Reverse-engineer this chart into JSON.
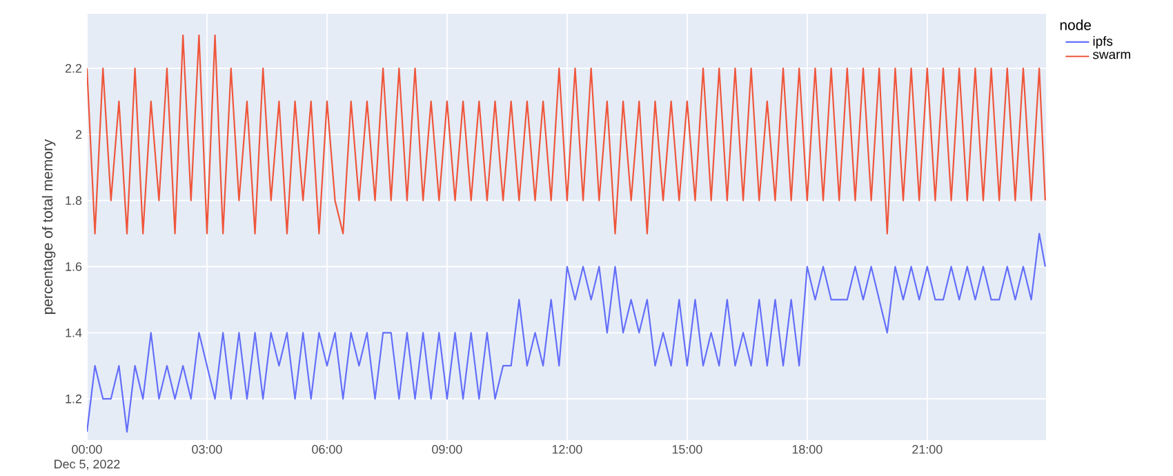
{
  "chart_data": {
    "type": "line",
    "xlabel": null,
    "ylabel": "percentage of total memory",
    "legend_title": "node",
    "legend": "right",
    "grid": true,
    "annotations": [
      "Dec 5, 2022"
    ],
    "xlim": [
      0,
      23.97
    ],
    "ylim": [
      1.075,
      2.365
    ],
    "xticks": [
      {
        "value": 0,
        "label": "00:00"
      },
      {
        "value": 3,
        "label": "03:00"
      },
      {
        "value": 6,
        "label": "06:00"
      },
      {
        "value": 9,
        "label": "09:00"
      },
      {
        "value": 12,
        "label": "12:00"
      },
      {
        "value": 15,
        "label": "15:00"
      },
      {
        "value": 18,
        "label": "18:00"
      },
      {
        "value": 21,
        "label": "21:00"
      }
    ],
    "yticks": [
      1.2,
      1.4,
      1.6,
      1.8,
      2,
      2.2
    ],
    "x": [
      0,
      0.2,
      0.4,
      0.6,
      0.8,
      1,
      1.2,
      1.4,
      1.6,
      1.8,
      2,
      2.2,
      2.4,
      2.6,
      2.8,
      3,
      3.2,
      3.4,
      3.6,
      3.8,
      4,
      4.2,
      4.4,
      4.6,
      4.8,
      5,
      5.2,
      5.4,
      5.6,
      5.8,
      6,
      6.2,
      6.4,
      6.6,
      6.8,
      7,
      7.2,
      7.4,
      7.6,
      7.8,
      8,
      8.2,
      8.4,
      8.6,
      8.8,
      9,
      9.2,
      9.4,
      9.6,
      9.8,
      10,
      10.2,
      10.4,
      10.6,
      10.8,
      11,
      11.2,
      11.4,
      11.6,
      11.8,
      12,
      12.2,
      12.4,
      12.6,
      12.8,
      13,
      13.2,
      13.4,
      13.6,
      13.8,
      14,
      14.2,
      14.4,
      14.6,
      14.8,
      15,
      15.2,
      15.4,
      15.6,
      15.8,
      16,
      16.2,
      16.4,
      16.6,
      16.8,
      17,
      17.2,
      17.4,
      17.6,
      17.8,
      18,
      18.2,
      18.4,
      18.6,
      18.8,
      19,
      19.2,
      19.4,
      19.6,
      19.8,
      20,
      20.2,
      20.4,
      20.6,
      20.8,
      21,
      21.2,
      21.4,
      21.6,
      21.8,
      22,
      22.2,
      22.4,
      22.6,
      22.8,
      23,
      23.2,
      23.4,
      23.6,
      23.8,
      23.95
    ],
    "series": [
      {
        "name": "ipfs",
        "color": "#636efa",
        "values": [
          1.1,
          1.3,
          1.2,
          1.2,
          1.3,
          1.1,
          1.3,
          1.2,
          1.4,
          1.2,
          1.3,
          1.2,
          1.3,
          1.2,
          1.4,
          1.3,
          1.2,
          1.4,
          1.2,
          1.4,
          1.2,
          1.4,
          1.2,
          1.4,
          1.3,
          1.4,
          1.2,
          1.4,
          1.2,
          1.4,
          1.3,
          1.4,
          1.2,
          1.4,
          1.3,
          1.4,
          1.2,
          1.4,
          1.4,
          1.2,
          1.4,
          1.2,
          1.4,
          1.2,
          1.4,
          1.2,
          1.4,
          1.2,
          1.4,
          1.2,
          1.4,
          1.2,
          1.3,
          1.3,
          1.5,
          1.3,
          1.4,
          1.3,
          1.5,
          1.3,
          1.6,
          1.5,
          1.6,
          1.5,
          1.6,
          1.4,
          1.6,
          1.4,
          1.5,
          1.4,
          1.5,
          1.3,
          1.4,
          1.3,
          1.5,
          1.3,
          1.5,
          1.3,
          1.4,
          1.3,
          1.5,
          1.3,
          1.4,
          1.3,
          1.5,
          1.3,
          1.5,
          1.3,
          1.5,
          1.3,
          1.6,
          1.5,
          1.6,
          1.5,
          1.5,
          1.5,
          1.6,
          1.5,
          1.6,
          1.5,
          1.4,
          1.6,
          1.5,
          1.6,
          1.5,
          1.6,
          1.5,
          1.5,
          1.6,
          1.5,
          1.6,
          1.5,
          1.6,
          1.5,
          1.5,
          1.6,
          1.5,
          1.6,
          1.5,
          1.7,
          1.6
        ]
      },
      {
        "name": "swarm",
        "color": "#ef553b",
        "values": [
          2.2,
          1.7,
          2.2,
          1.8,
          2.1,
          1.7,
          2.2,
          1.7,
          2.1,
          1.8,
          2.2,
          1.7,
          2.3,
          1.8,
          2.3,
          1.7,
          2.3,
          1.7,
          2.2,
          1.8,
          2.1,
          1.7,
          2.2,
          1.8,
          2.1,
          1.7,
          2.1,
          1.8,
          2.1,
          1.7,
          2.1,
          1.8,
          1.7,
          2.1,
          1.8,
          2.1,
          1.8,
          2.2,
          1.8,
          2.2,
          1.8,
          2.2,
          1.8,
          2.1,
          1.8,
          2.1,
          1.8,
          2.1,
          1.8,
          2.1,
          1.8,
          2.1,
          1.8,
          2.1,
          1.8,
          2.1,
          1.8,
          2.1,
          1.8,
          2.2,
          1.8,
          2.2,
          1.8,
          2.2,
          1.8,
          2.1,
          1.7,
          2.1,
          1.8,
          2.1,
          1.7,
          2.1,
          1.8,
          2.1,
          1.8,
          2.1,
          1.8,
          2.2,
          1.8,
          2.2,
          1.8,
          2.2,
          1.8,
          2.2,
          1.8,
          2.1,
          1.8,
          2.2,
          1.8,
          2.2,
          1.8,
          2.2,
          1.8,
          2.2,
          1.8,
          2.2,
          1.8,
          2.2,
          1.8,
          2.2,
          1.7,
          2.2,
          1.8,
          2.2,
          1.8,
          2.2,
          1.8,
          2.2,
          1.8,
          2.2,
          1.8,
          2.2,
          1.8,
          2.2,
          1.8,
          2.2,
          1.8,
          2.2,
          1.8,
          2.2,
          1.8
        ]
      }
    ]
  }
}
